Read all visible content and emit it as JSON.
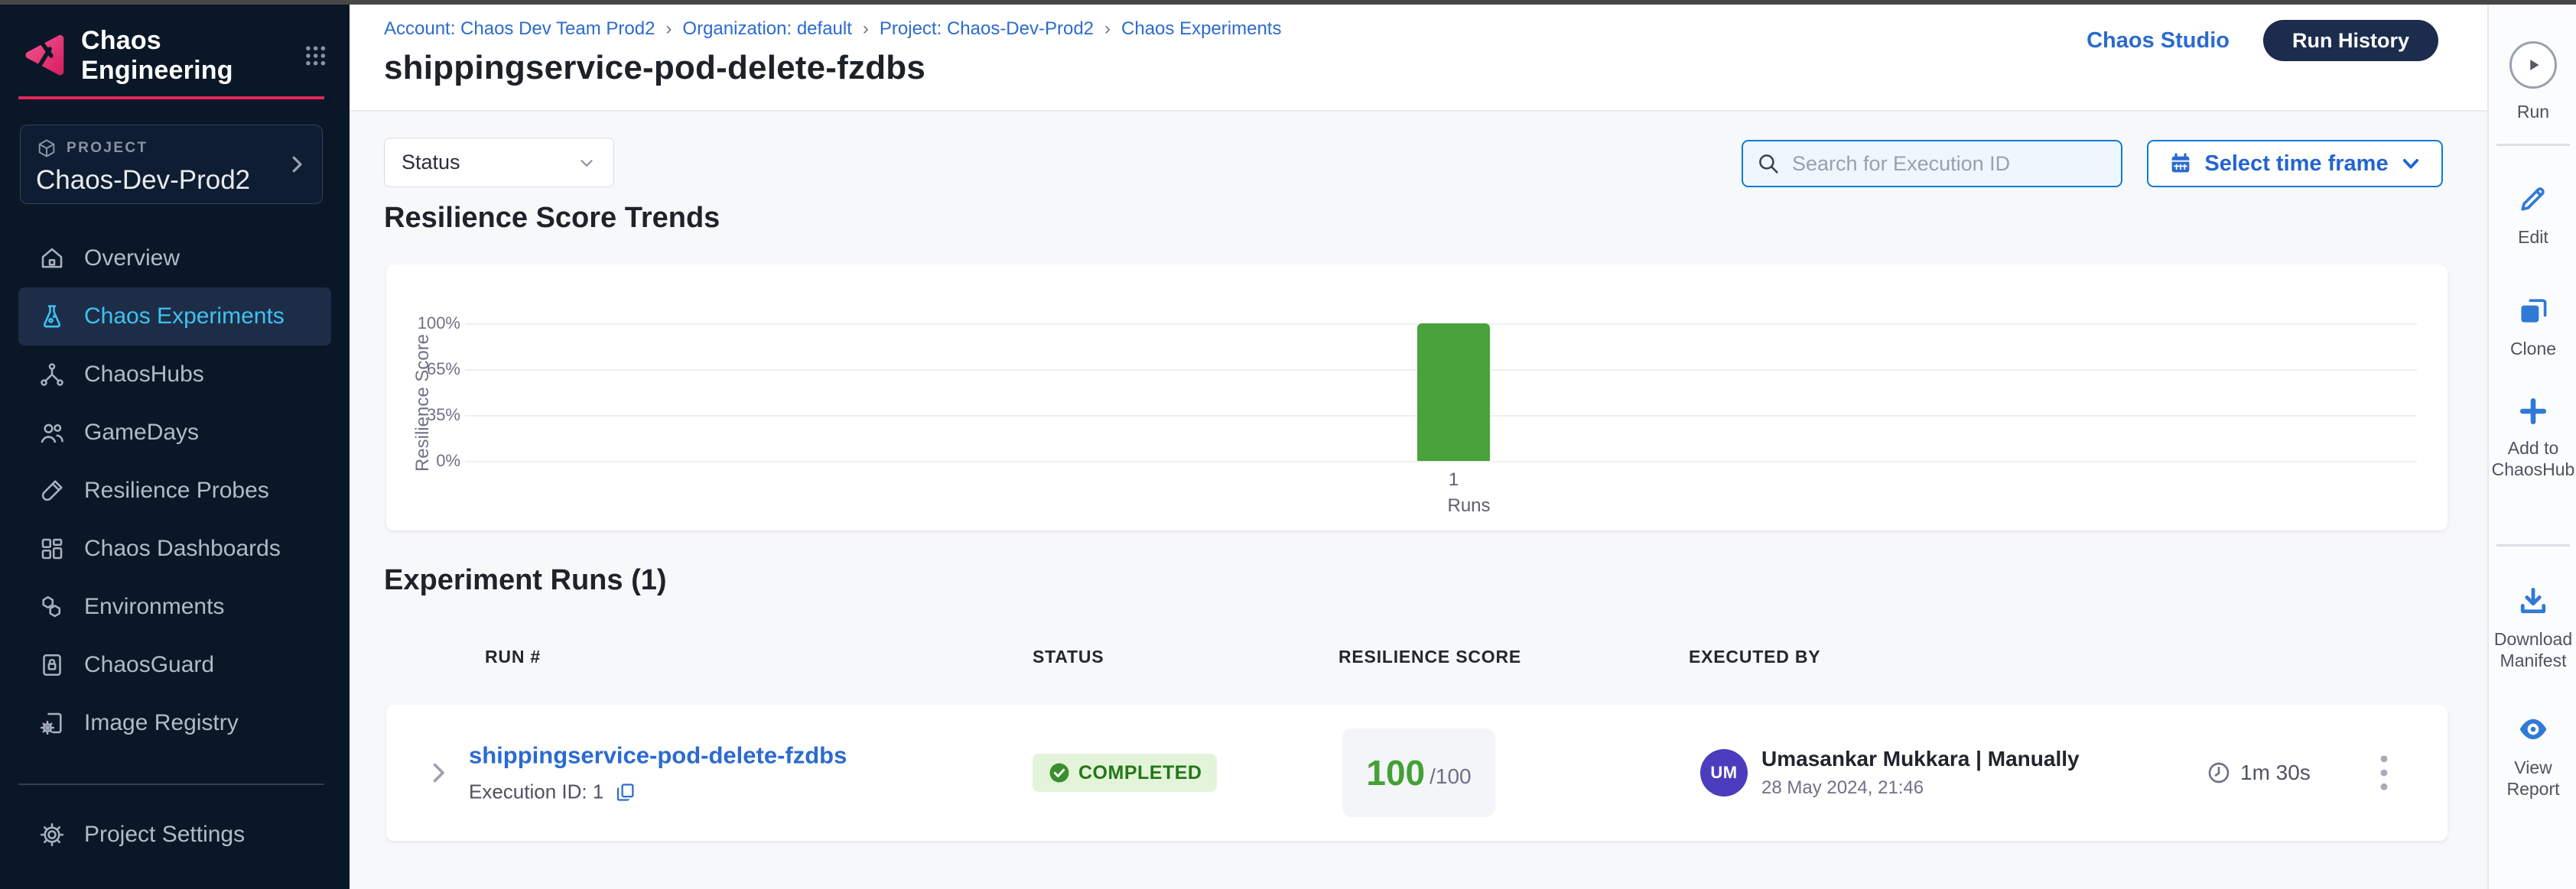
{
  "sidebar": {
    "app_title": "Chaos Engineering",
    "project_label": "PROJECT",
    "project_name": "Chaos-Dev-Prod2",
    "items": [
      {
        "label": "Overview",
        "icon": "home-icon",
        "selected": false
      },
      {
        "label": "Chaos Experiments",
        "icon": "flask-icon",
        "selected": true
      },
      {
        "label": "ChaosHubs",
        "icon": "hub-icon",
        "selected": false
      },
      {
        "label": "GameDays",
        "icon": "people-icon",
        "selected": false
      },
      {
        "label": "Resilience Probes",
        "icon": "probe-icon",
        "selected": false
      },
      {
        "label": "Chaos Dashboards",
        "icon": "dashboard-icon",
        "selected": false
      },
      {
        "label": "Environments",
        "icon": "hexagons-icon",
        "selected": false
      },
      {
        "label": "ChaosGuard",
        "icon": "lock-icon",
        "selected": false
      },
      {
        "label": "Image Registry",
        "icon": "registry-icon",
        "selected": false
      }
    ],
    "footer_item": {
      "label": "Project Settings",
      "icon": "gear-icon"
    }
  },
  "header": {
    "breadcrumb": [
      "Account: Chaos Dev Team Prod2",
      "Organization: default",
      "Project: Chaos-Dev-Prod2",
      "Chaos Experiments"
    ],
    "separator": "›",
    "title": "shippingservice-pod-delete-fzdbs",
    "chaos_studio_link": "Chaos Studio",
    "run_history_button": "Run History"
  },
  "filters": {
    "status_dropdown": "Status",
    "search_placeholder": "Search for Execution ID",
    "time_frame_button": "Select time frame"
  },
  "trends": {
    "heading": "Resilience Score Trends"
  },
  "chart_data": {
    "type": "bar",
    "title": "Resilience Score Trends",
    "categories": [
      "1"
    ],
    "values": [
      100
    ],
    "xlabel": "Runs",
    "ylabel": "Resilience Score",
    "yticks": [
      "100%",
      "65%",
      "35%",
      "0%"
    ],
    "ylim": [
      0,
      100
    ],
    "bar_color": "#4aa23c",
    "grid": true,
    "legend": false
  },
  "runs_section": {
    "heading": "Experiment Runs (1)",
    "table": {
      "columns": [
        "RUN #",
        "STATUS",
        "RESILIENCE SCORE",
        "EXECUTED BY"
      ],
      "rows": [
        {
          "run_name": "shippingservice-pod-delete-fzdbs",
          "execution_id_label": "Execution ID: 1",
          "status": "COMPLETED",
          "score": "100",
          "score_total": "/100",
          "avatar_initials": "UM",
          "executed_by": "Umasankar Mukkara | Manually",
          "executed_at": "28 May 2024, 21:46",
          "duration": "1m 30s"
        }
      ]
    }
  },
  "action_rail": {
    "run_label": "Run",
    "actions": [
      {
        "label": "Edit",
        "icon": "pencil-icon"
      },
      {
        "label": "Clone",
        "icon": "clone-icon"
      },
      {
        "label": "Add to ChaosHub",
        "icon": "plus-icon"
      },
      {
        "label": "Download Manifest",
        "icon": "download-icon"
      },
      {
        "label": "View Report",
        "icon": "eye-icon"
      }
    ]
  },
  "colors": {
    "accent_blue": "#2b6bd0",
    "azure_border": "#0b7dd7",
    "sidebar_selected_text": "#3cc3f2",
    "brand_pink": "#e2275b",
    "bar_green": "#4aa23c",
    "score_green": "#42a134",
    "badge_bg": "#e3f4da",
    "badge_text": "#247718",
    "run_history_bg": "#1b2c4d",
    "avatar_bg": "#4b3dbe",
    "sidebar_bg": "#0a1727"
  }
}
